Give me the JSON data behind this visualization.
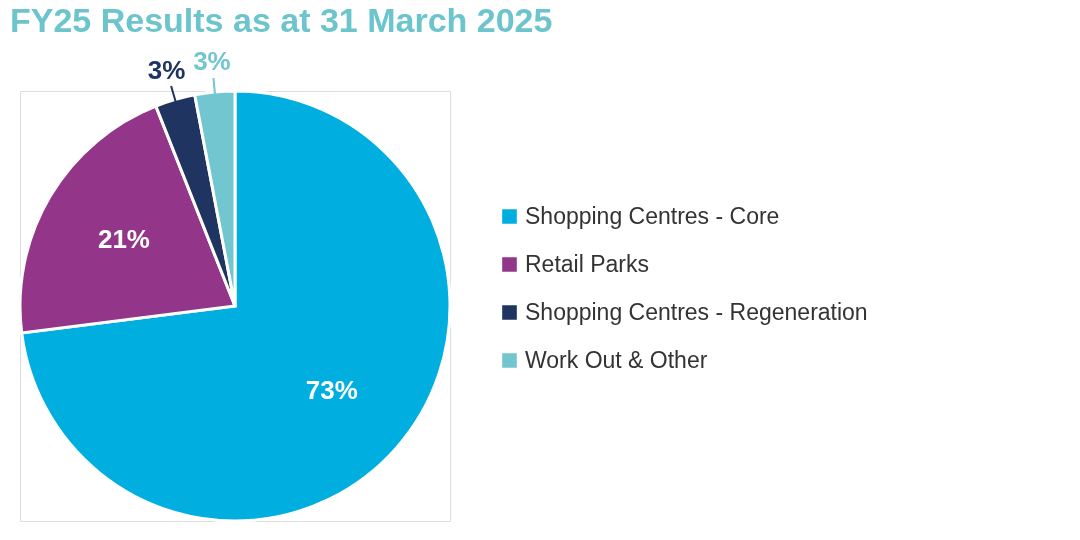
{
  "chart_data": {
    "type": "pie",
    "title": "FY25 Results as at 31 March 2025",
    "categories": [
      "Shopping Centres - Core",
      "Retail Parks",
      "Shopping Centres - Regeneration",
      "Work Out & Other"
    ],
    "values": [
      73,
      21,
      3,
      3
    ],
    "colors": [
      "#00aee0",
      "#93368a",
      "#1f3461",
      "#72c6d0"
    ],
    "value_labels": [
      "73%",
      "21%",
      "3%",
      "3%"
    ],
    "legend": "right"
  }
}
